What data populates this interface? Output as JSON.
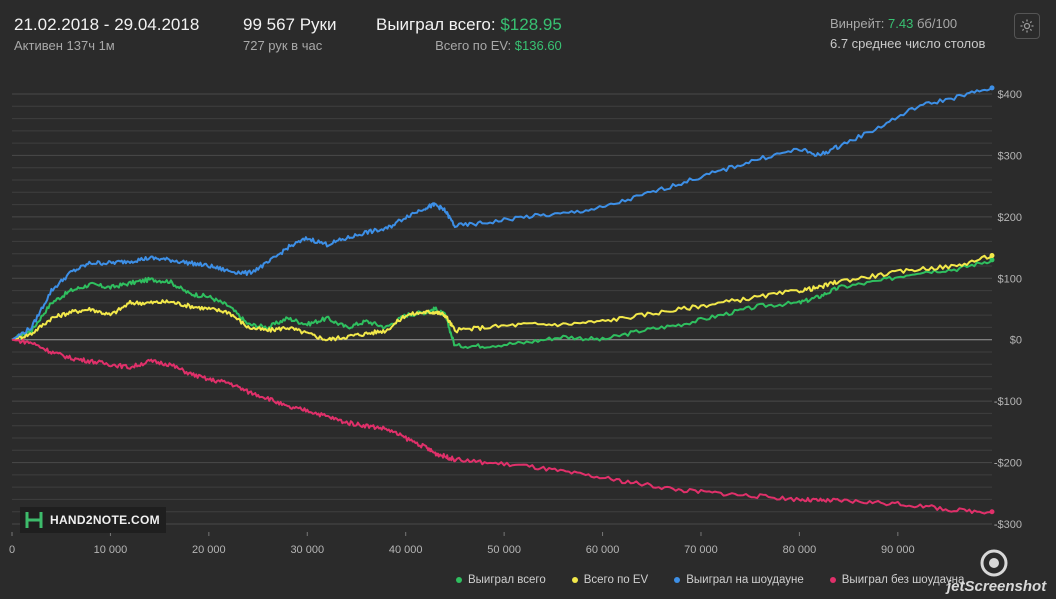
{
  "header": {
    "date_range": "21.02.2018 - 29.04.2018",
    "active": "Активен 137ч 1м",
    "hands": "99 567 Руки",
    "hands_per_hour": "727 рук в час",
    "won_label": "Выиграл всего:",
    "won_value": "$128.95",
    "ev_label": "Всего по EV:",
    "ev_value": "$136.60",
    "winrate_label": "Винрейт:",
    "winrate_value": "7.43",
    "winrate_unit": "бб/100",
    "avg_tables": "6.7 среднее число столов"
  },
  "settings_icon": "gear-icon",
  "logo_text": "HAND2NOTE.COM",
  "watermark_text": "jetScreenshot",
  "colors": {
    "won": "#2fbf5f",
    "ev": "#f2e84a",
    "showdown": "#3d8fe6",
    "non_showdown": "#e0306a",
    "zero_line": "#9a9a9a",
    "grid": "#3f3f3f"
  },
  "chart_data": {
    "type": "line",
    "xlim": [
      0,
      99567
    ],
    "ylim": [
      -300,
      400
    ],
    "x_ticks": [
      0,
      10000,
      20000,
      30000,
      40000,
      50000,
      60000,
      70000,
      80000,
      90000
    ],
    "x_tick_labels": [
      "0",
      "10 000",
      "20 000",
      "30 000",
      "40 000",
      "50 000",
      "60 000",
      "70 000",
      "80 000",
      "90 000"
    ],
    "y_ticks": [
      400,
      300,
      200,
      100,
      0,
      -100,
      -200,
      -300
    ],
    "y_tick_labels": [
      "$400",
      "$300",
      "$200",
      "$100",
      "$0",
      "-$100",
      "-$200",
      "-$300"
    ],
    "grid": true,
    "legend_position": "bottom-right",
    "x": [
      0,
      2000,
      4000,
      6000,
      8000,
      10000,
      12000,
      14000,
      16000,
      18000,
      20000,
      22000,
      24000,
      26000,
      28000,
      30000,
      32000,
      34000,
      36000,
      38000,
      40000,
      42000,
      43000,
      44000,
      45000,
      48000,
      52000,
      56000,
      60000,
      64000,
      68000,
      72000,
      76000,
      80000,
      82000,
      84000,
      88000,
      92000,
      96000,
      99567
    ],
    "series": [
      {
        "name": "Выиграл всего",
        "color_key": "won",
        "values": [
          0,
          15,
          60,
          80,
          90,
          85,
          92,
          98,
          95,
          75,
          70,
          55,
          25,
          20,
          35,
          25,
          35,
          20,
          30,
          20,
          40,
          45,
          50,
          40,
          -10,
          -10,
          -5,
          5,
          0,
          15,
          25,
          40,
          55,
          60,
          70,
          85,
          95,
          110,
          115,
          130
        ]
      },
      {
        "name": "Всего по EV",
        "color_key": "ev",
        "values": [
          0,
          10,
          35,
          45,
          50,
          40,
          60,
          60,
          62,
          55,
          50,
          45,
          20,
          15,
          20,
          10,
          0,
          5,
          10,
          15,
          40,
          45,
          45,
          40,
          15,
          20,
          25,
          25,
          30,
          40,
          50,
          60,
          70,
          80,
          85,
          95,
          105,
          115,
          120,
          137
        ]
      },
      {
        "name": "Выиграл на шоудауне",
        "color_key": "showdown",
        "values": [
          0,
          20,
          80,
          110,
          125,
          125,
          128,
          133,
          130,
          125,
          120,
          112,
          108,
          125,
          150,
          165,
          155,
          165,
          175,
          180,
          200,
          215,
          220,
          210,
          185,
          190,
          200,
          205,
          215,
          235,
          255,
          275,
          295,
          310,
          300,
          315,
          345,
          380,
          395,
          410
        ]
      },
      {
        "name": "Выиграл без шоудауна",
        "color_key": "non_showdown",
        "values": [
          0,
          -5,
          -20,
          -30,
          -35,
          -40,
          -45,
          -35,
          -40,
          -55,
          -65,
          -70,
          -85,
          -95,
          -110,
          -115,
          -125,
          -135,
          -140,
          -145,
          -160,
          -175,
          -185,
          -190,
          -195,
          -200,
          -205,
          -215,
          -225,
          -235,
          -245,
          -250,
          -255,
          -260,
          -262,
          -262,
          -265,
          -270,
          -278,
          -280
        ]
      }
    ]
  }
}
